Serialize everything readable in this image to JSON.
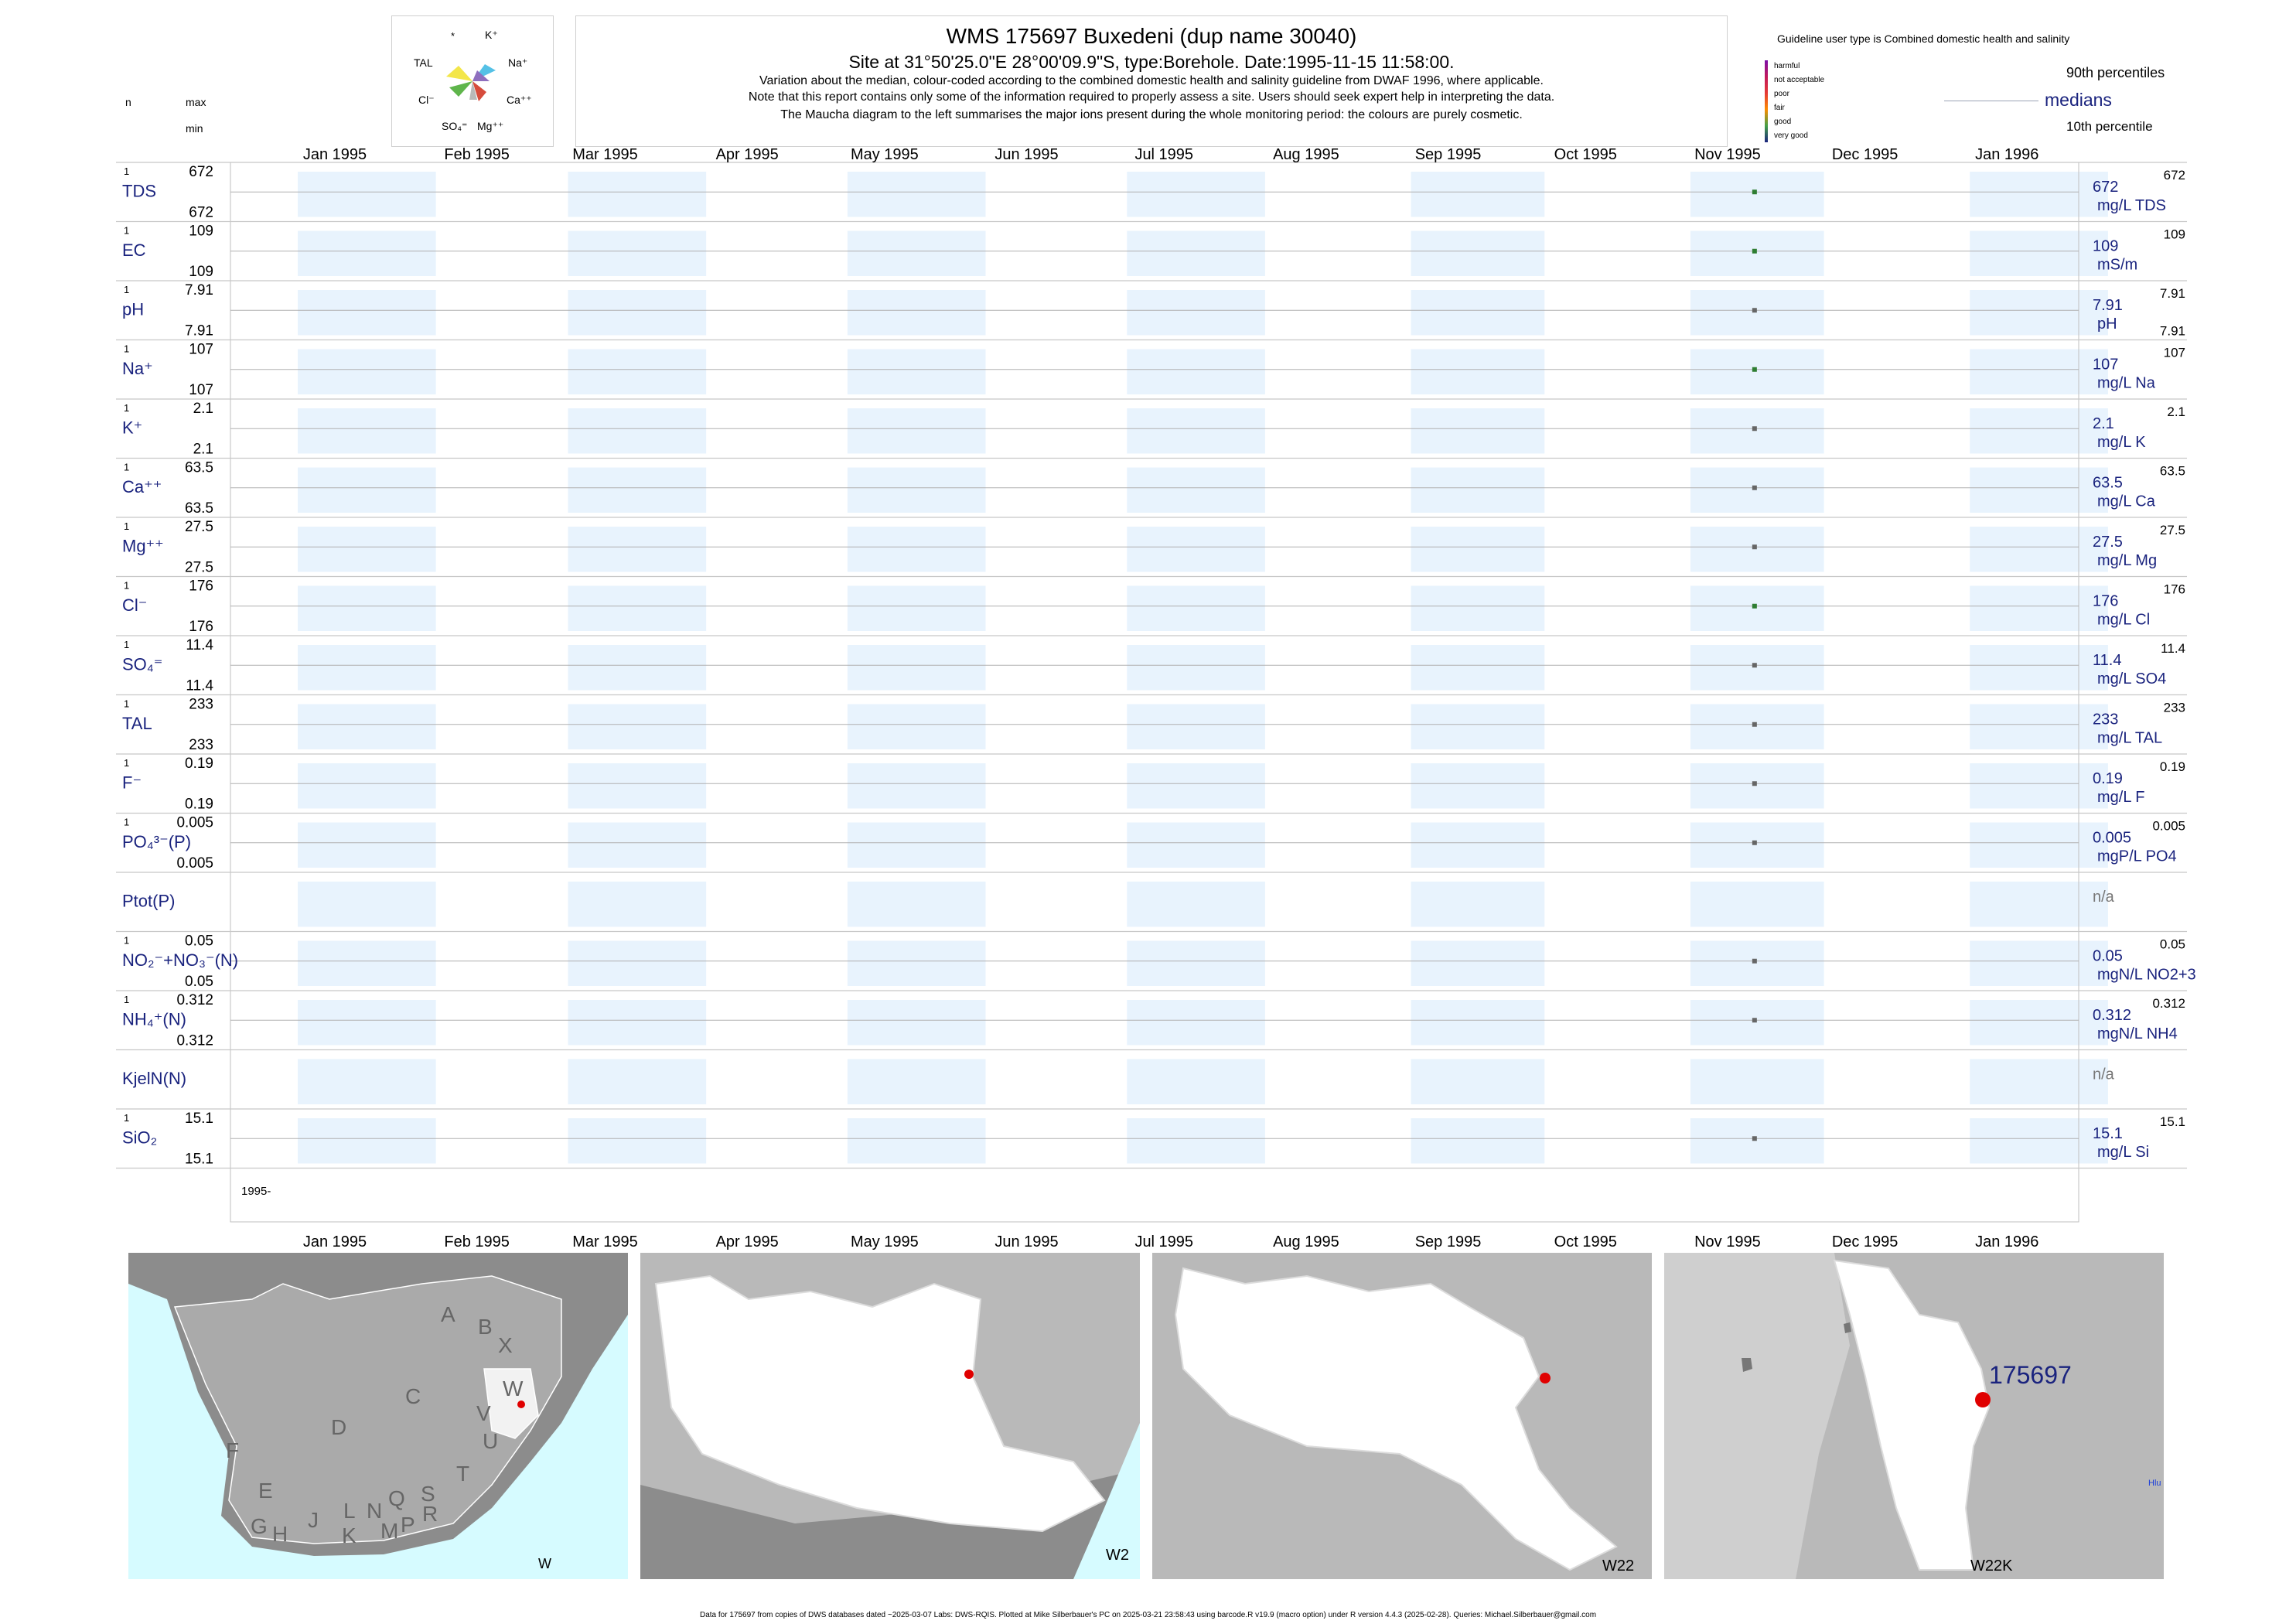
{
  "header": {
    "title": "WMS 175697  Buxedeni (dup name 30040)",
    "site_line": "Site at 31°50'25.0\"E 28°00'09.9\"S, type:Borehole. Date:1995-11-15 11:58:00.",
    "note1": "Variation about the median,  colour-coded according to the combined domestic health and salinity guideline from DWAF 1996, where applicable.",
    "note2": "Note that this report contains only some of the information required to properly assess a site. Users should seek expert help in interpreting the data.",
    "note3": "The Maucha diagram to the left summarises the major ions present during the whole monitoring period: the colours are purely cosmetic."
  },
  "left_labels": {
    "n": "n",
    "max": "max",
    "min": "min"
  },
  "maucha": {
    "labels": [
      "*",
      "K⁺",
      "TAL",
      "Na⁺",
      "Cl⁻",
      "Ca⁺⁺",
      "SO₄⁼",
      "Mg⁺⁺"
    ],
    "colors": [
      "#f3e64a",
      "#55c1e6",
      "#5fb54b",
      "#d64c3c",
      "#8e6fbe",
      "#b9b9b9"
    ]
  },
  "legend": {
    "guideline": "Guideline user type is Combined domestic health and salinity",
    "classes": [
      "harmful",
      "not acceptable",
      "poor",
      "fair",
      "good",
      "very good"
    ],
    "class_colors": [
      "#7b0ea8",
      "#c2185b",
      "#e53935",
      "#fb8c00",
      "#43a047",
      "#1a237e"
    ],
    "p90": "90th percentiles",
    "medians": "medians",
    "p10": "10th percentile"
  },
  "chart_data": {
    "type": "scatter",
    "x_range": [
      "1995-01-01",
      "1996-01-31"
    ],
    "month_labels": [
      "Jan 1995",
      "Feb 1995",
      "Mar 1995",
      "Apr 1995",
      "May 1995",
      "Jun 1995",
      "Jul 1995",
      "Aug 1995",
      "Sep 1995",
      "Oct 1995",
      "Nov 1995",
      "Dec 1995",
      "Jan 1996"
    ],
    "bottom_year_label": "1995-",
    "rows": [
      {
        "label": "TDS",
        "n": "1",
        "max": "672",
        "min": "672",
        "median": "672",
        "unit": "mg/L TDS",
        "p90": "672",
        "p10": "",
        "date": "1995-11-15",
        "value": 672,
        "color": "#2e7d32"
      },
      {
        "label": "EC",
        "n": "1",
        "max": "109",
        "min": "109",
        "median": "109",
        "unit": "mS/m",
        "p90": "109",
        "p10": "",
        "date": "1995-11-15",
        "value": 109,
        "color": "#2e7d32"
      },
      {
        "label": "pH",
        "n": "1",
        "max": "7.91",
        "min": "7.91",
        "median": "7.91",
        "unit": "pH",
        "p90": "7.91",
        "p10": "7.91",
        "date": "1995-11-15",
        "value": 7.91,
        "color": "#666666"
      },
      {
        "label": "Na⁺",
        "n": "1",
        "max": "107",
        "min": "107",
        "median": "107",
        "unit": "mg/L Na",
        "p90": "107",
        "p10": "",
        "date": "1995-11-15",
        "value": 107,
        "color": "#2e7d32"
      },
      {
        "label": "K⁺",
        "n": "1",
        "max": "2.1",
        "min": "2.1",
        "median": "2.1",
        "unit": "mg/L K",
        "p90": "2.1",
        "p10": "",
        "date": "1995-11-15",
        "value": 2.1,
        "color": "#666666"
      },
      {
        "label": "Ca⁺⁺",
        "n": "1",
        "max": "63.5",
        "min": "63.5",
        "median": "63.5",
        "unit": "mg/L Ca",
        "p90": "63.5",
        "p10": "",
        "date": "1995-11-15",
        "value": 63.5,
        "color": "#666666"
      },
      {
        "label": "Mg⁺⁺",
        "n": "1",
        "max": "27.5",
        "min": "27.5",
        "median": "27.5",
        "unit": "mg/L Mg",
        "p90": "27.5",
        "p10": "",
        "date": "1995-11-15",
        "value": 27.5,
        "color": "#666666"
      },
      {
        "label": "Cl⁻",
        "n": "1",
        "max": "176",
        "min": "176",
        "median": "176",
        "unit": "mg/L Cl",
        "p90": "176",
        "p10": "",
        "date": "1995-11-15",
        "value": 176,
        "color": "#2e7d32"
      },
      {
        "label": "SO₄⁼",
        "n": "1",
        "max": "11.4",
        "min": "11.4",
        "median": "11.4",
        "unit": "mg/L SO4",
        "p90": "11.4",
        "p10": "",
        "date": "1995-11-15",
        "value": 11.4,
        "color": "#666666"
      },
      {
        "label": "TAL",
        "n": "1",
        "max": "233",
        "min": "233",
        "median": "233",
        "unit": "mg/L TAL",
        "p90": "233",
        "p10": "",
        "date": "1995-11-15",
        "value": 233,
        "color": "#666666"
      },
      {
        "label": "F⁻",
        "n": "1",
        "max": "0.19",
        "min": "0.19",
        "median": "0.19",
        "unit": "mg/L F",
        "p90": "0.19",
        "p10": "",
        "date": "1995-11-15",
        "value": 0.19,
        "color": "#666666"
      },
      {
        "label": "PO₄³⁻(P)",
        "n": "1",
        "max": "0.005",
        "min": "0.005",
        "median": "0.005",
        "unit": "mgP/L PO4",
        "p90": "0.005",
        "p10": "",
        "date": "1995-11-15",
        "value": 0.005,
        "color": "#666666"
      },
      {
        "label": "Ptot(P)",
        "n": "",
        "max": "",
        "min": "",
        "median": "n/a",
        "unit": "",
        "p90": "",
        "p10": "",
        "date": null,
        "value": null,
        "color": "#666666"
      },
      {
        "label": "NO₂⁻+NO₃⁻(N)",
        "n": "1",
        "max": "0.05",
        "min": "0.05",
        "median": "0.05",
        "unit": "mgN/L NO2+3",
        "p90": "0.05",
        "p10": "",
        "date": "1995-11-15",
        "value": 0.05,
        "color": "#666666"
      },
      {
        "label": "NH₄⁺(N)",
        "n": "1",
        "max": "0.312",
        "min": "0.312",
        "median": "0.312",
        "unit": "mgN/L NH4",
        "p90": "0.312",
        "p10": "",
        "date": "1995-11-15",
        "value": 0.312,
        "color": "#666666"
      },
      {
        "label": "KjelN(N)",
        "n": "",
        "max": "",
        "min": "",
        "median": "n/a",
        "unit": "",
        "p90": "",
        "p10": "",
        "date": null,
        "value": null,
        "color": "#666666"
      },
      {
        "label": "SiO₂",
        "n": "1",
        "max": "15.1",
        "min": "15.1",
        "median": "15.1",
        "unit": "mg/L Si",
        "p90": "15.1",
        "p10": "",
        "date": "1995-11-15",
        "value": 15.1,
        "color": "#666666"
      }
    ]
  },
  "maps": {
    "panel_labels": [
      "W",
      "W2",
      "W22",
      "W22K"
    ],
    "region_letters": [
      "A",
      "B",
      "X",
      "W",
      "C",
      "V",
      "U",
      "D",
      "T",
      "F",
      "E",
      "S",
      "Q",
      "L",
      "N",
      "R",
      "J",
      "G",
      "H",
      "K",
      "M",
      "P"
    ],
    "site_label": "175697",
    "edge_label": "Hlu"
  },
  "footer": "Data for 175697 from copies of DWS databases dated ~2025-03-07 Labs: DWS-RQIS. Plotted at Mike Silberbauer's PC on 2025-03-21 23:58:43 using barcode.R v19.9 (macro option) under R version 4.4.3 (2025-02-28). Queries: Michael.Silberbauer@gmail.com"
}
